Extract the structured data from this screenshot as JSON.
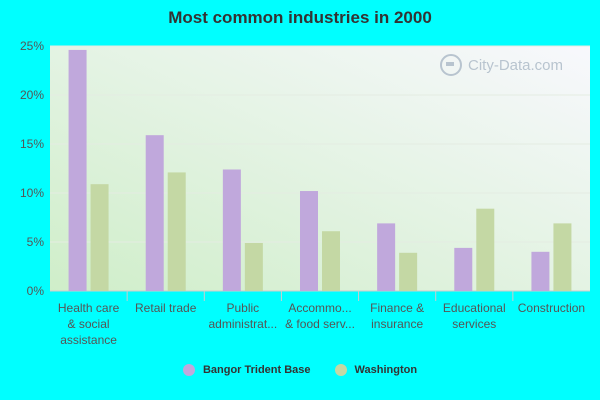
{
  "chart_data": {
    "type": "bar",
    "title": "Most common industries in 2000",
    "categories": [
      [
        "Health care",
        "& social",
        "assistance"
      ],
      [
        "Retail trade"
      ],
      [
        "Public",
        "administrat..."
      ],
      [
        "Accommo...",
        "& food serv..."
      ],
      [
        "Finance &",
        "insurance"
      ],
      [
        "Educational",
        "services"
      ],
      [
        "Construction"
      ]
    ],
    "series": [
      {
        "name": "Bangor Trident Base",
        "color": "#c0a8dc",
        "values": [
          24.6,
          15.9,
          12.4,
          10.2,
          6.9,
          4.4,
          4.0
        ]
      },
      {
        "name": "Washington",
        "color": "#c4d8a4",
        "values": [
          10.9,
          12.1,
          4.9,
          6.1,
          3.9,
          8.4,
          6.9
        ]
      }
    ],
    "ylim": [
      0,
      25
    ],
    "yticks": [
      "0%",
      "5%",
      "10%",
      "15%",
      "20%",
      "25%"
    ],
    "xlabel": "",
    "ylabel": "",
    "legend_position": "bottom"
  },
  "watermark": {
    "text": "City-Data.com",
    "icon": "city-data-logo-icon"
  }
}
